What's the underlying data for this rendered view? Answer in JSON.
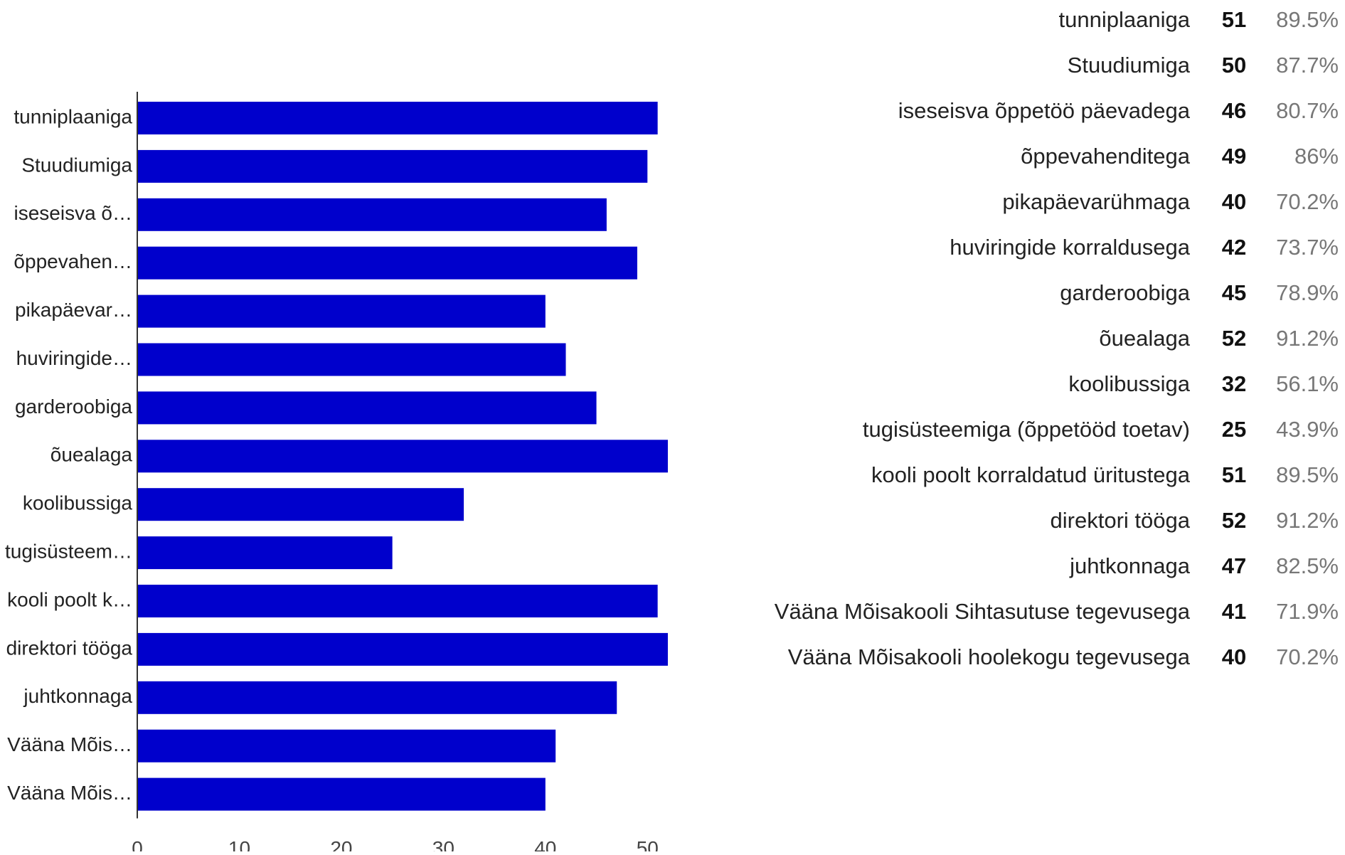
{
  "chart_data": {
    "type": "bar",
    "orientation": "horizontal",
    "categories": [
      "tunniplaaniga",
      "Stuudiumiga",
      "iseseisva õ…",
      "õppevahen…",
      "pikapäevar…",
      "huviringide…",
      "garderoobiga",
      "õuealaga",
      "koolibussiga",
      "tugisüsteem…",
      "kooli poolt k…",
      "direktori tööga",
      "juhtkonnaga",
      "Vääna Mõis…",
      "Vääna Mõis…"
    ],
    "values": [
      51,
      50,
      46,
      49,
      40,
      42,
      45,
      52,
      32,
      25,
      51,
      52,
      47,
      41,
      40
    ],
    "color": "#0000cc",
    "xlim": [
      0,
      55
    ],
    "xticks": [
      0,
      10,
      20,
      30,
      40,
      50
    ],
    "grid": false
  },
  "table": {
    "rows": [
      [
        "tunniplaaniga",
        "51",
        "89.5%"
      ],
      [
        "Stuudiumiga",
        "50",
        "87.7%"
      ],
      [
        "iseseisva õppetöö päevadega",
        "46",
        "80.7%"
      ],
      [
        "õppevahenditega",
        "49",
        "86%"
      ],
      [
        "pikapäevarühmaga",
        "40",
        "70.2%"
      ],
      [
        "huviringide korraldusega",
        "42",
        "73.7%"
      ],
      [
        "garderoobiga",
        "45",
        "78.9%"
      ],
      [
        "õuealaga",
        "52",
        "91.2%"
      ],
      [
        "koolibussiga",
        "32",
        "56.1%"
      ],
      [
        "tugisüsteemiga (õppetööd toetav)",
        "25",
        "43.9%"
      ],
      [
        "kooli poolt korraldatud üritustega",
        "51",
        "89.5%"
      ],
      [
        "direktori tööga",
        "52",
        "91.2%"
      ],
      [
        "juhtkonnaga",
        "47",
        "82.5%"
      ],
      [
        "Vääna Mõisakooli Sihtasutuse tegevusega",
        "41",
        "71.9%"
      ],
      [
        "Vääna Mõisakooli hoolekogu tegevusega",
        "40",
        "70.2%"
      ]
    ]
  }
}
